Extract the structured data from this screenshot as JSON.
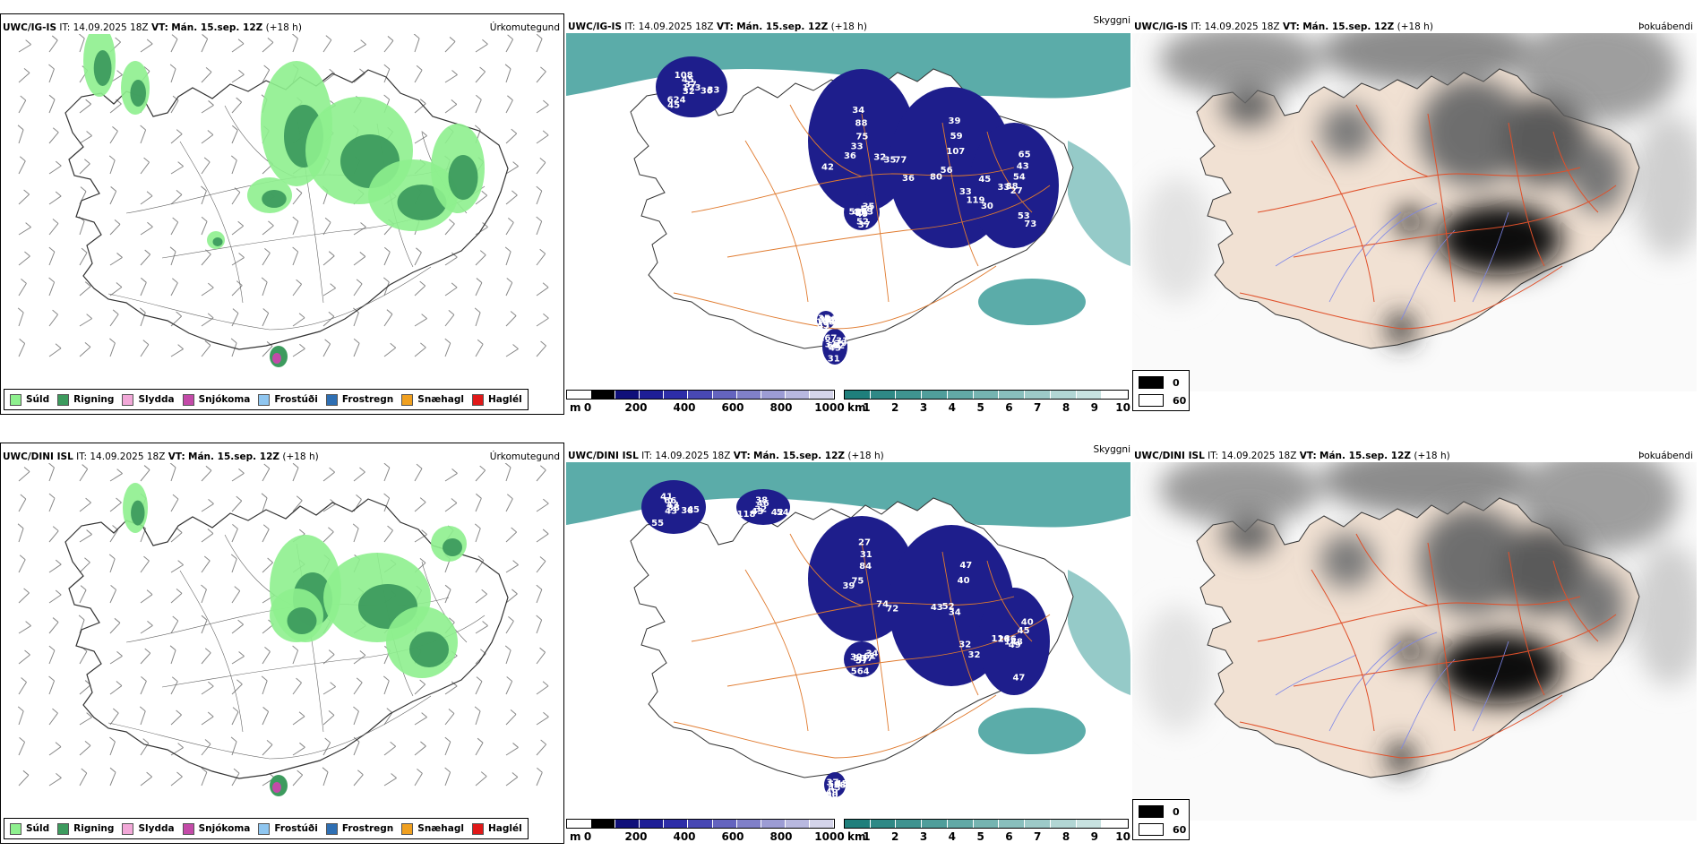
{
  "rows": [
    {
      "model": "UWC/IG-IS",
      "it_label": "IT:",
      "it_value": "14.09.2025 18Z",
      "vt_label": "VT:",
      "vt_value": "Mán. 15.sep. 12Z",
      "lead": "(+18 h)",
      "cloud_numbers": [
        "173",
        "36",
        "39",
        "27",
        "58",
        "31",
        "108",
        "108",
        "77",
        "80",
        "65",
        "49",
        "31",
        "35",
        "32",
        "34",
        "30",
        "33",
        "35",
        "43",
        "35",
        "33",
        "33",
        "59",
        "73",
        "45",
        "39",
        "37",
        "45",
        "35",
        "56",
        "43",
        "37",
        "64",
        "52",
        "45",
        "88",
        "119",
        "88",
        "58",
        "31",
        "34",
        "36",
        "42",
        "107",
        "53",
        "71",
        "62",
        "43",
        "37",
        "32",
        "36",
        "54",
        "52",
        "167",
        "44",
        "624",
        "75",
        "33",
        "45",
        "103"
      ]
    },
    {
      "model": "UWC/DINI ISL",
      "it_label": "IT:",
      "it_value": "14.09.2025 18Z",
      "vt_label": "VT:",
      "vt_value": "Mán. 15.sep. 12Z",
      "lead": "(+18 h)",
      "cloud_numbers": [
        "38",
        "43",
        "27",
        "34",
        "116",
        "34",
        "45",
        "41",
        "54",
        "39",
        "47",
        "49",
        "39",
        "45",
        "43",
        "38",
        "72",
        "43",
        "40",
        "57",
        "37",
        "45",
        "32",
        "31",
        "32",
        "236",
        "61",
        "60",
        "66",
        "42",
        "75",
        "40",
        "47",
        "50",
        "58",
        "55",
        "46",
        "74",
        "52",
        "45",
        "564",
        "58",
        "38",
        "118",
        "84",
        "32",
        "148",
        "37",
        "49",
        "43"
      ]
    }
  ],
  "panel_tags": {
    "precip": "Úrkomutegund",
    "cloud": "Skyggni",
    "fog": "Þokuábendi"
  },
  "precip_legend": [
    {
      "label": "Súld",
      "color": "#8ef08e"
    },
    {
      "label": "Rigning",
      "color": "#3d9b5e"
    },
    {
      "label": "Slydda",
      "color": "#f2a8d8"
    },
    {
      "label": "Snjókoma",
      "color": "#c34aa8"
    },
    {
      "label": "Frostúði",
      "color": "#8fc6f0"
    },
    {
      "label": "Frostregn",
      "color": "#2e6fb3"
    },
    {
      "label": "Snæhagl",
      "color": "#f0a020"
    },
    {
      "label": "Haglél",
      "color": "#e01818"
    }
  ],
  "ceiling_bar": {
    "unit": "m",
    "ticks": [
      "0",
      "200",
      "400",
      "600",
      "800",
      "1000"
    ],
    "colors": [
      "#ffffff",
      "#000000",
      "#10107a",
      "#1e1e96",
      "#2d2da8",
      "#4848b4",
      "#6464bf",
      "#8080c9",
      "#9c9cd4",
      "#b8b8df",
      "#d4d4ea"
    ]
  },
  "visibility_bar": {
    "unit": "km",
    "ticks": [
      "1",
      "2",
      "3",
      "4",
      "5",
      "6",
      "7",
      "8",
      "9",
      "10"
    ],
    "colors": [
      "#1f7f7c",
      "#2f8986",
      "#3f9390",
      "#509e9b",
      "#62a9a6",
      "#75b4b1",
      "#89bfbd",
      "#9dcac8",
      "#b2d6d4",
      "#c8e2e0",
      "#ffffff"
    ]
  },
  "fog_legend": [
    {
      "value": "0",
      "color": "#000000"
    },
    {
      "value": "60",
      "color": "#ffffff"
    }
  ]
}
